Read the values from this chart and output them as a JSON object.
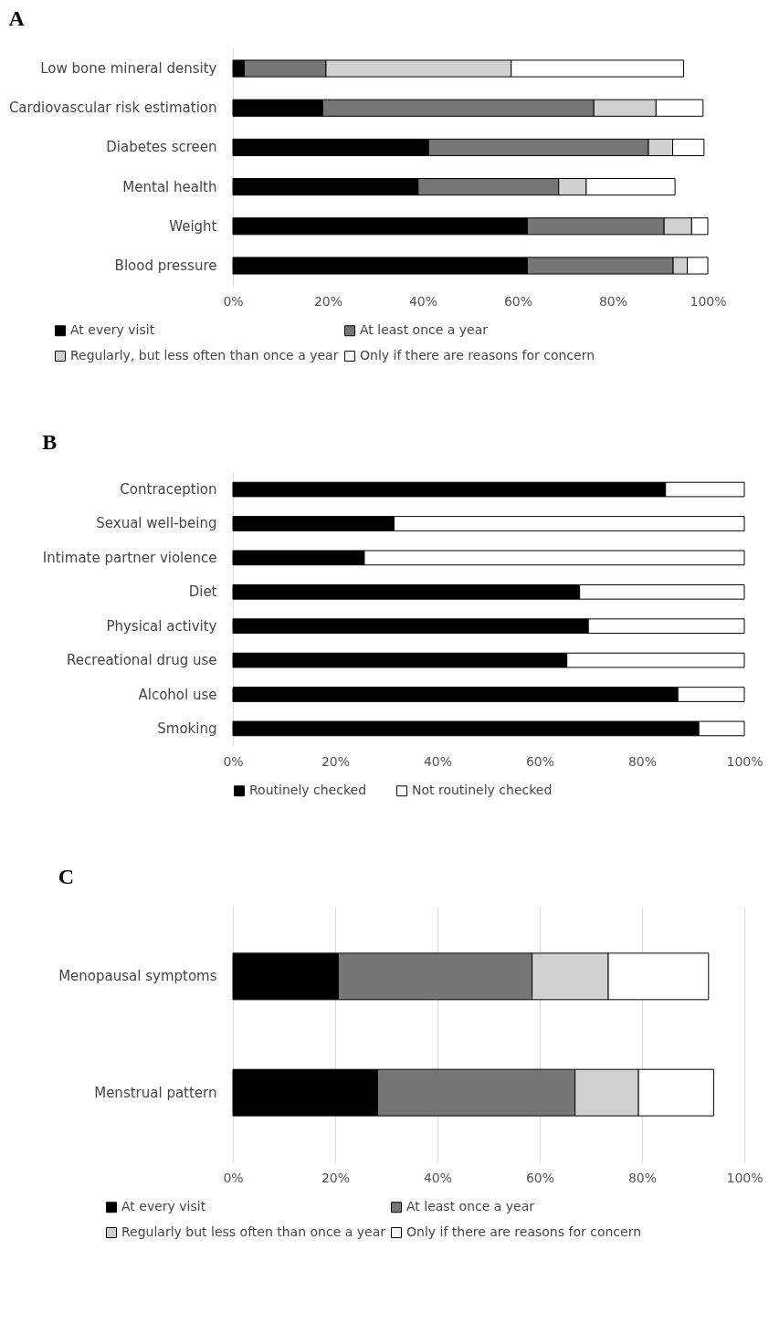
{
  "chart_data": [
    {
      "type": "bar",
      "title": "A",
      "orientation": "horizontal",
      "stacked": true,
      "grid": false,
      "legend": "bottom",
      "categories": [
        "Low bone mineral density",
        "Cardiovascular risk estimation",
        "Diabetes screen",
        "Mental health",
        "Weight",
        "Blood pressure"
      ],
      "xlim": [
        0,
        100
      ],
      "xticks": [
        {
          "value": 0,
          "label": "0%"
        },
        {
          "value": 20,
          "label": "20%"
        },
        {
          "value": 40,
          "label": "40%"
        },
        {
          "value": 60,
          "label": "60%"
        },
        {
          "value": 80,
          "label": "80%"
        },
        {
          "value": 100,
          "label": "100%"
        }
      ],
      "series": [
        {
          "name": "At every visit",
          "color": "#000000",
          "values": [
            2.4,
            18.9,
            41.2,
            39,
            62,
            62
          ]
        },
        {
          "name": "At least once a year",
          "color": "#767676",
          "values": [
            17.2,
            57.1,
            46.3,
            29.6,
            28.8,
            30.7
          ]
        },
        {
          "name": "Regularly, but less often than once a year",
          "color": "#d0d0d0",
          "values": [
            39,
            13.1,
            5.1,
            5.8,
            5.8,
            3
          ]
        },
        {
          "name": "Only if there are reasons for concern",
          "color": "#ffffff",
          "values": [
            36.3,
            9.9,
            6.6,
            18.7,
            3.4,
            4.3
          ]
        }
      ]
    },
    {
      "type": "bar",
      "title": "B",
      "orientation": "horizontal",
      "stacked": true,
      "grid": false,
      "legend": "bottom",
      "categories": [
        "Contraception",
        "Sexual well-being",
        "Intimate partner violence",
        "Diet",
        "Physical activity",
        "Recreational drug use",
        "Alcohol use",
        "Smoking"
      ],
      "xlim": [
        0,
        100
      ],
      "xticks": [
        {
          "value": 0,
          "label": "0%"
        },
        {
          "value": 20,
          "label": "20%"
        },
        {
          "value": 40,
          "label": "40%"
        },
        {
          "value": 60,
          "label": "60%"
        },
        {
          "value": 80,
          "label": "80%"
        },
        {
          "value": 100,
          "label": "100%"
        }
      ],
      "series": [
        {
          "name": "Routinely checked",
          "color": "#000000",
          "values": [
            84.6,
            31.5,
            25.7,
            67.8,
            69.5,
            65.3,
            87,
            91.1
          ]
        },
        {
          "name": "Not routinely checked",
          "color": "#ffffff",
          "values": [
            15.4,
            68.5,
            74.3,
            32.2,
            30.5,
            34.7,
            13,
            8.9
          ]
        }
      ]
    },
    {
      "type": "bar",
      "title": "C",
      "orientation": "horizontal",
      "stacked": true,
      "grid": "x",
      "legend": "bottom",
      "categories": [
        "Menopausal symptoms",
        "Menstrual pattern"
      ],
      "xlim": [
        0,
        100
      ],
      "xticks": [
        {
          "value": 0,
          "label": "0%"
        },
        {
          "value": 20,
          "label": "20%"
        },
        {
          "value": 40,
          "label": "40%"
        },
        {
          "value": 60,
          "label": "60%"
        },
        {
          "value": 80,
          "label": "80%"
        },
        {
          "value": 100,
          "label": "100%"
        }
      ],
      "series": [
        {
          "name": "At every visit",
          "color": "#000000",
          "values": [
            20.6,
            28.3
          ]
        },
        {
          "name": "At least once a year",
          "color": "#767676",
          "values": [
            37.9,
            38.6
          ]
        },
        {
          "name": "Regularly but less often than once a year",
          "color": "#d0d0d0",
          "values": [
            14.9,
            12.4
          ]
        },
        {
          "name": "Only if there are reasons for concern",
          "color": "#ffffff",
          "values": [
            19.6,
            14.7
          ]
        }
      ]
    }
  ]
}
